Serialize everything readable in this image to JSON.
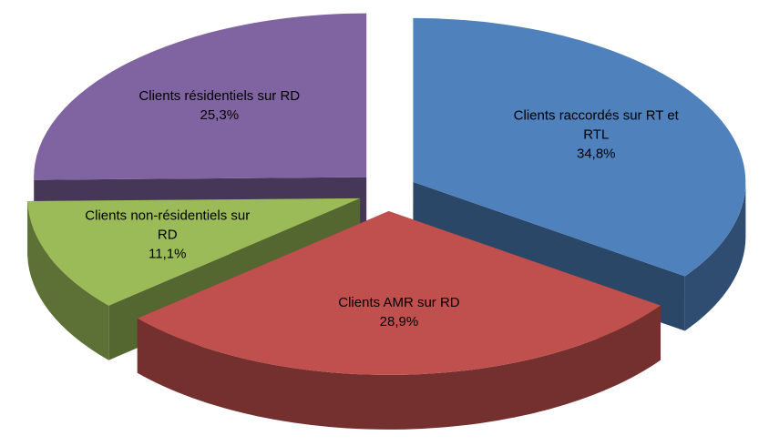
{
  "chart_data": {
    "type": "pie3d",
    "categories": [
      "Clients raccordés sur RT et RTL",
      "Clients AMR sur RD",
      "Clients non-résidentiels sur RD",
      "Clients résidentiels sur RD"
    ],
    "values": [
      34.8,
      28.9,
      11.1,
      25.3
    ],
    "value_labels": [
      "34,8%",
      "28,9%",
      "11,1%",
      "25,3%"
    ],
    "colors": [
      "#4f81bd",
      "#c0504d",
      "#9bbb59",
      "#8064a2"
    ]
  }
}
